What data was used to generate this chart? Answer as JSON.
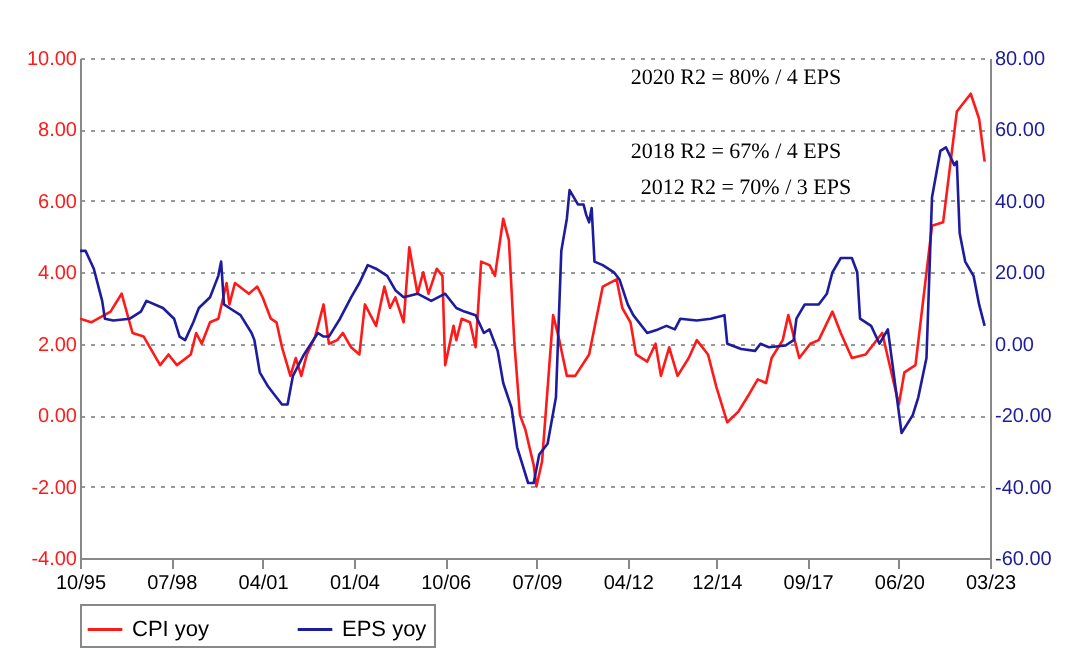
{
  "chart_data": {
    "type": "line",
    "annotations": [
      "2020 R2 = 80% / 4 EPS",
      "2018 R2 = 67% / 4 EPS",
      "2012 R2 = 70% / 3 EPS"
    ],
    "xlim": [
      "1995-10",
      "2023-03"
    ],
    "xticks": [
      {
        "value": "1995-10",
        "label": "10/95"
      },
      {
        "value": "1998-07",
        "label": "07/98"
      },
      {
        "value": "2001-04",
        "label": "04/01"
      },
      {
        "value": "2004-01",
        "label": "01/04"
      },
      {
        "value": "2006-10",
        "label": "10/06"
      },
      {
        "value": "2009-07",
        "label": "07/09"
      },
      {
        "value": "2012-04",
        "label": "04/12"
      },
      {
        "value": "2014-12",
        "label": "12/14"
      },
      {
        "value": "2017-09",
        "label": "09/17"
      },
      {
        "value": "2020-06",
        "label": "06/20"
      },
      {
        "value": "2023-03",
        "label": "03/23"
      }
    ],
    "ylim": [
      -4,
      10
    ],
    "yticks": [
      {
        "value": -4,
        "label": "-4.00"
      },
      {
        "value": -2,
        "label": "-2.00"
      },
      {
        "value": 0,
        "label": "0.00"
      },
      {
        "value": 2,
        "label": "2.00"
      },
      {
        "value": 4,
        "label": "4.00"
      },
      {
        "value": 6,
        "label": "6.00"
      },
      {
        "value": 8,
        "label": "8.00"
      },
      {
        "value": 10,
        "label": "10.00"
      }
    ],
    "y2lim": [
      -60,
      80
    ],
    "y2ticks": [
      {
        "value": -60,
        "label": "-60.00"
      },
      {
        "value": -40,
        "label": "-40.00"
      },
      {
        "value": -20,
        "label": "-20.00"
      },
      {
        "value": 0,
        "label": "0.00"
      },
      {
        "value": 20,
        "label": "20.00"
      },
      {
        "value": 40,
        "label": "40.00"
      },
      {
        "value": 60,
        "label": "60.00"
      },
      {
        "value": 80,
        "label": "80.00"
      }
    ],
    "grid": "y",
    "legend": "bottom",
    "series": [
      {
        "name": "CPI yoy",
        "color": "#ff1a1a",
        "x": [
          "1995-10",
          "1996-02",
          "1996-09",
          "1997-01",
          "1997-05",
          "1997-09",
          "1998-03",
          "1998-06",
          "1998-09",
          "1999-02",
          "1999-04",
          "1999-06",
          "1999-09",
          "1999-12",
          "2000-03",
          "2000-04",
          "2000-06",
          "2000-11",
          "2001-02",
          "2001-04",
          "2001-07",
          "2001-09",
          "2001-11",
          "2002-02",
          "2002-04",
          "2002-06",
          "2002-08",
          "2002-11",
          "2003-02",
          "2003-04",
          "2003-07",
          "2003-09",
          "2003-12",
          "2004-03",
          "2004-05",
          "2004-09",
          "2004-12",
          "2005-02",
          "2005-04",
          "2005-07",
          "2005-09",
          "2005-12",
          "2006-02",
          "2006-04",
          "2006-07",
          "2006-09",
          "2006-10",
          "2007-01",
          "2007-02",
          "2007-04",
          "2007-07",
          "2007-09",
          "2007-11",
          "2008-02",
          "2008-04",
          "2008-07",
          "2008-09",
          "2008-11",
          "2009-01",
          "2009-03",
          "2009-06",
          "2009-07",
          "2009-09",
          "2010-01",
          "2010-03",
          "2010-06",
          "2010-09",
          "2011-02",
          "2011-07",
          "2011-12",
          "2012-02",
          "2012-05",
          "2012-07",
          "2012-11",
          "2013-02",
          "2013-04",
          "2013-07",
          "2013-10",
          "2014-02",
          "2014-05",
          "2014-09",
          "2014-12",
          "2015-04",
          "2015-08",
          "2015-12",
          "2016-03",
          "2016-06",
          "2016-08",
          "2016-12",
          "2017-02",
          "2017-06",
          "2017-10",
          "2018-01",
          "2018-06",
          "2018-09",
          "2019-01",
          "2019-06",
          "2019-12",
          "2020-06",
          "2020-08",
          "2020-12",
          "2021-06",
          "2021-10",
          "2022-03",
          "2022-08",
          "2022-11",
          "2023-01"
        ],
        "values": [
          2.7,
          2.6,
          2.9,
          3.4,
          2.3,
          2.2,
          1.4,
          1.7,
          1.4,
          1.7,
          2.3,
          2.0,
          2.6,
          2.7,
          3.7,
          3.1,
          3.7,
          3.4,
          3.6,
          3.3,
          2.7,
          2.6,
          1.9,
          1.1,
          1.6,
          1.1,
          1.7,
          2.2,
          3.1,
          2.0,
          2.1,
          2.3,
          1.9,
          1.7,
          3.1,
          2.5,
          3.6,
          3.0,
          3.3,
          2.6,
          4.7,
          3.4,
          4.0,
          3.4,
          4.1,
          3.9,
          1.4,
          2.5,
          2.1,
          2.7,
          2.6,
          1.9,
          4.3,
          4.2,
          3.9,
          5.5,
          4.9,
          2.0,
          0.0,
          -0.4,
          -1.4,
          -2.0,
          -1.3,
          2.8,
          2.2,
          1.1,
          1.1,
          1.7,
          3.6,
          3.8,
          3.0,
          2.6,
          1.7,
          1.5,
          2.0,
          1.1,
          1.9,
          1.1,
          1.6,
          2.1,
          1.7,
          0.8,
          -0.2,
          0.1,
          0.6,
          1.0,
          0.9,
          1.6,
          2.1,
          2.8,
          1.6,
          2.0,
          2.1,
          2.9,
          2.3,
          1.6,
          1.7,
          2.3,
          0.3,
          1.2,
          1.4,
          5.3,
          5.4,
          8.5,
          9.0,
          8.3,
          7.1
        ]
      },
      {
        "name": "EPS yoy",
        "color": "#1c1c9c",
        "axis": "y2",
        "x": [
          "1995-10",
          "1995-12",
          "1996-03",
          "1996-05",
          "1996-06",
          "1996-07",
          "1996-10",
          "1997-04",
          "1997-08",
          "1997-10",
          "1998-04",
          "1998-08",
          "1998-10",
          "1998-12",
          "1999-03",
          "1999-05",
          "1999-09",
          "1999-12",
          "2000-01",
          "2000-02",
          "2000-04",
          "2000-08",
          "2000-12",
          "2001-01",
          "2001-03",
          "2001-06",
          "2001-08",
          "2001-11",
          "2002-01",
          "2002-03",
          "2002-07",
          "2002-12",
          "2003-02",
          "2003-04",
          "2003-08",
          "2003-12",
          "2004-03",
          "2004-06",
          "2004-09",
          "2005-01",
          "2005-04",
          "2005-07",
          "2005-12",
          "2006-05",
          "2006-10",
          "2007-02",
          "2007-05",
          "2007-09",
          "2007-12",
          "2008-02",
          "2008-05",
          "2008-07",
          "2008-10",
          "2008-12",
          "2009-04",
          "2009-06",
          "2009-08",
          "2009-11",
          "2010-02",
          "2010-04",
          "2010-06",
          "2010-07",
          "2010-10",
          "2010-12",
          "2011-01",
          "2011-02",
          "2011-03",
          "2011-04",
          "2011-07",
          "2011-11",
          "2012-01",
          "2012-04",
          "2012-06",
          "2012-11",
          "2013-03",
          "2013-06",
          "2013-09",
          "2013-11",
          "2014-05",
          "2014-10",
          "2015-03",
          "2015-04",
          "2015-09",
          "2016-02",
          "2016-04",
          "2016-07",
          "2017-01",
          "2017-04",
          "2017-05",
          "2017-08",
          "2018-01",
          "2018-04",
          "2018-06",
          "2018-09",
          "2019-01",
          "2019-03",
          "2019-04",
          "2019-08",
          "2019-11",
          "2020-02",
          "2020-07",
          "2020-11",
          "2021-01",
          "2021-04",
          "2021-06",
          "2021-09",
          "2021-11",
          "2022-02",
          "2022-03",
          "2022-04",
          "2022-06",
          "2022-09",
          "2022-11",
          "2023-01"
        ],
        "values": [
          26,
          26,
          21,
          15,
          12,
          7,
          6.5,
          7,
          9,
          12,
          10,
          7,
          2,
          1,
          6,
          10,
          13,
          19,
          23,
          11,
          10,
          8,
          3,
          1,
          -8,
          -12,
          -14,
          -17,
          -17,
          -9,
          -3,
          3,
          2,
          2,
          7,
          13,
          17,
          22,
          21,
          19,
          15,
          13,
          14,
          12,
          14,
          10,
          9,
          8,
          3,
          4,
          -2,
          -11,
          -18,
          -29,
          -39,
          -39,
          -31,
          -28,
          -15,
          26,
          35,
          43,
          39,
          39,
          36,
          34,
          38,
          23,
          22,
          20,
          18,
          11,
          8,
          3,
          4,
          5,
          4,
          7,
          6.5,
          7,
          8,
          0,
          -1.5,
          -2,
          0,
          -1,
          -0.5,
          1,
          7,
          11,
          11,
          14,
          20,
          24,
          24,
          20,
          7,
          5,
          0,
          4,
          -25,
          -20,
          -15,
          -4,
          41,
          54,
          55,
          50,
          51,
          31,
          23,
          19,
          11,
          5
        ]
      }
    ]
  }
}
